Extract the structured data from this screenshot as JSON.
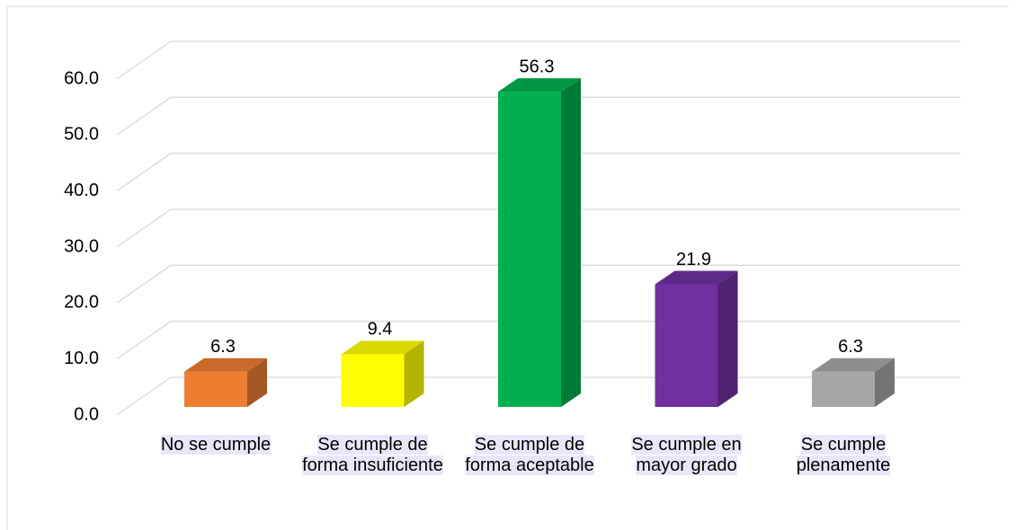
{
  "chart_data": {
    "type": "bar3d",
    "categories": [
      "No se cumple",
      "Se cumple de forma insuficiente",
      "Se cumple de forma aceptable",
      "Se cumple en mayor grado",
      "Se cumple plenamente"
    ],
    "values": [
      6.3,
      9.4,
      56.3,
      21.9,
      6.3
    ],
    "colors": [
      "#ed7d31",
      "#ffff00",
      "#00b050",
      "#7030a0",
      "#a6a6a6"
    ],
    "ylim": [
      0,
      60
    ],
    "yticks": [
      {
        "value": 0,
        "label": "0.0"
      },
      {
        "value": 10,
        "label": "10.0"
      },
      {
        "value": 20,
        "label": "20.0"
      },
      {
        "value": 30,
        "label": "30.0"
      },
      {
        "value": 40,
        "label": "40.0"
      },
      {
        "value": 50,
        "label": "50.0"
      },
      {
        "value": 60,
        "label": "60.0"
      }
    ],
    "grid": true
  }
}
